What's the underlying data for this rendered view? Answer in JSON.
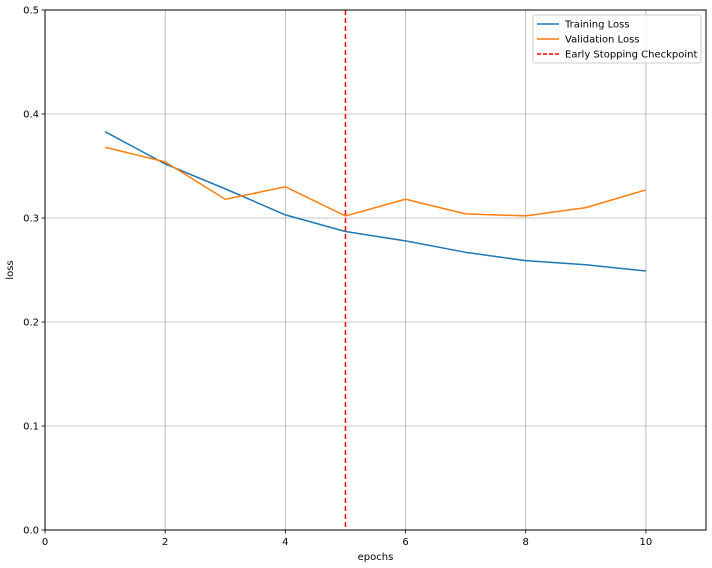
{
  "chart_data": {
    "type": "line",
    "xlabel": "epochs",
    "ylabel": "loss",
    "xlim": [
      0,
      11
    ],
    "ylim": [
      0,
      0.5
    ],
    "xticks": [
      0,
      2,
      4,
      6,
      8,
      10
    ],
    "yticks": [
      0.0,
      0.1,
      0.2,
      0.3,
      0.4,
      0.5
    ],
    "xtick_labels": [
      "0",
      "2",
      "4",
      "6",
      "8",
      "10"
    ],
    "ytick_labels": [
      "0.0",
      "0.1",
      "0.2",
      "0.3",
      "0.4",
      "0.5"
    ],
    "grid": true,
    "legend_position": "top-right",
    "x": [
      1,
      2,
      3,
      4,
      5,
      6,
      7,
      8,
      9,
      10
    ],
    "series": [
      {
        "name": "Training Loss",
        "color": "#1f77b4",
        "values": [
          0.383,
          0.352,
          0.328,
          0.303,
          0.287,
          0.278,
          0.267,
          0.259,
          0.255,
          0.249
        ]
      },
      {
        "name": "Validation Loss",
        "color": "#ff7f0e",
        "values": [
          0.368,
          0.354,
          0.318,
          0.33,
          0.302,
          0.318,
          0.304,
          0.302,
          0.31,
          0.327
        ]
      }
    ],
    "vline": {
      "name": "Early Stopping Checkpoint",
      "x": 5,
      "color": "#ff0000",
      "style": "dashed"
    }
  }
}
